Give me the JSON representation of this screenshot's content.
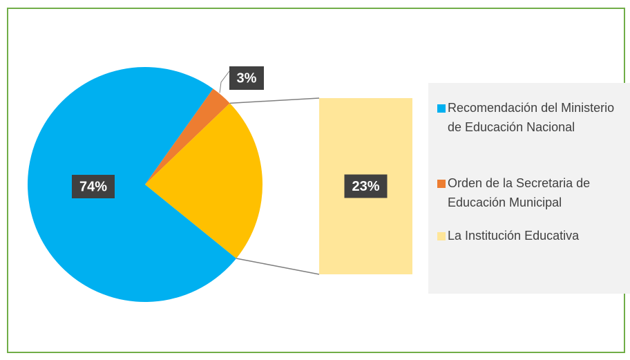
{
  "chart_data": {
    "type": "pie-of-bar",
    "categories": [
      "Recomendación del Ministerio de Educación Nacional",
      "Orden de la Secretaria de Educación Municipal",
      "La Institución Educativa"
    ],
    "values": [
      74,
      3,
      23
    ],
    "value_labels": [
      "74%",
      "3%",
      "23%"
    ],
    "colors": [
      "#00b0f0",
      "#ed7d31",
      "#ffe699"
    ],
    "aggregate_color": "#ffc000",
    "legend": "right"
  }
}
